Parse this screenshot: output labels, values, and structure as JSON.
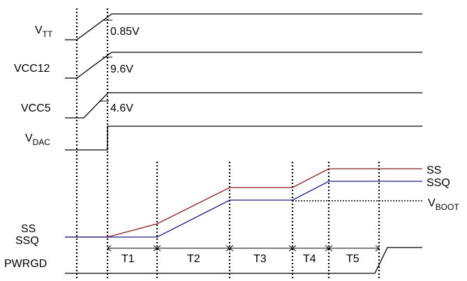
{
  "signals": {
    "vtt": {
      "name": "V",
      "sub": "TT",
      "level": "0.85V"
    },
    "vcc12": {
      "name": "VCC12",
      "level": "9.6V"
    },
    "vcc5": {
      "name": "VCC5",
      "level": "4.6V"
    },
    "vdac": {
      "name": "V",
      "sub": "DAC"
    },
    "ss": {
      "name": "SS",
      "right_label": "SS"
    },
    "ssq": {
      "name": "SSQ",
      "right_label": "SSQ"
    },
    "vboot": {
      "name": "V",
      "sub": "BOOT"
    },
    "pwrgd": {
      "name": "PWRGD"
    }
  },
  "intervals": [
    "T1",
    "T2",
    "T3",
    "T4",
    "T5"
  ],
  "colors": {
    "ss": "#8b1a1a",
    "ssq": "#1a1a8b",
    "line": "#000000"
  }
}
